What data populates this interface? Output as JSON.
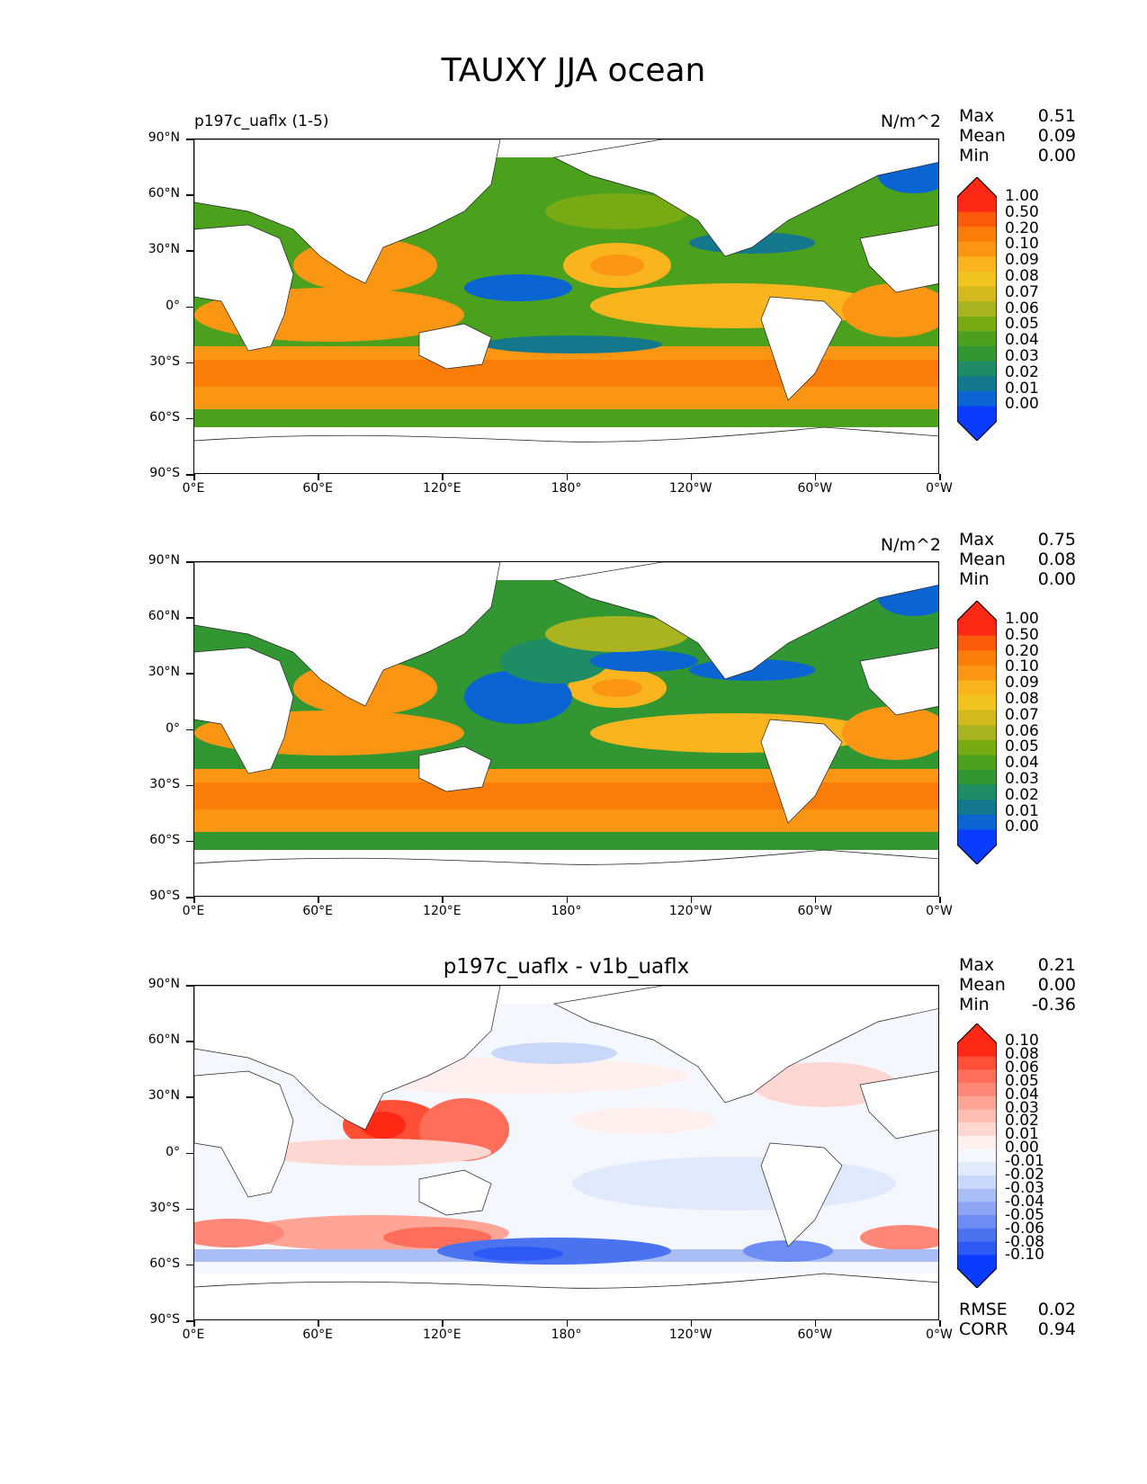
{
  "title": "TAUXY JJA ocean",
  "axes": {
    "yticks": [
      "90°N",
      "60°N",
      "30°N",
      "0°",
      "30°S",
      "60°S",
      "90°S"
    ],
    "xticks": [
      "0°E",
      "60°E",
      "120°E",
      "180°",
      "120°W",
      "60°W",
      "0°W"
    ]
  },
  "panels": [
    {
      "label_left": "p197c_uaflx (1-5)",
      "title_center": "",
      "units": "N/m^2",
      "stats": [
        {
          "label": "Max",
          "value": "0.51"
        },
        {
          "label": "Mean",
          "value": "0.09"
        },
        {
          "label": "Min",
          "value": "0.00"
        }
      ],
      "colorbar_labels": [
        "1.00",
        "0.50",
        "0.20",
        "0.10",
        "0.09",
        "0.08",
        "0.07",
        "0.06",
        "0.05",
        "0.04",
        "0.03",
        "0.02",
        "0.01",
        "0.00"
      ],
      "footer_stats": []
    },
    {
      "label_left": "",
      "title_center": "",
      "units": "N/m^2",
      "stats": [
        {
          "label": "Max",
          "value": "0.75"
        },
        {
          "label": "Mean",
          "value": "0.08"
        },
        {
          "label": "Min",
          "value": "0.00"
        }
      ],
      "colorbar_labels": [
        "1.00",
        "0.50",
        "0.20",
        "0.10",
        "0.09",
        "0.08",
        "0.07",
        "0.06",
        "0.05",
        "0.04",
        "0.03",
        "0.02",
        "0.01",
        "0.00"
      ],
      "footer_stats": []
    },
    {
      "label_left": "",
      "title_center": "p197c_uaflx - v1b_uaflx",
      "units": "",
      "stats": [
        {
          "label": "Max",
          "value": "0.21"
        },
        {
          "label": "Mean",
          "value": "0.00"
        },
        {
          "label": "Min",
          "value": "-0.36"
        }
      ],
      "colorbar_labels": [
        "0.10",
        "0.08",
        "0.06",
        "0.05",
        "0.04",
        "0.03",
        "0.02",
        "0.01",
        "0.00",
        "-0.01",
        "-0.02",
        "-0.03",
        "-0.04",
        "-0.05",
        "-0.06",
        "-0.08",
        "-0.10"
      ],
      "footer_stats": [
        {
          "label": "RMSE",
          "value": "0.02"
        },
        {
          "label": "CORR",
          "value": "0.94"
        }
      ]
    }
  ],
  "colors": {
    "seq": [
      "#0a3cff",
      "#0a64d2",
      "#14788c",
      "#1e8c64",
      "#329632",
      "#4ba01e",
      "#78aa14",
      "#aab41e",
      "#d2b91e",
      "#f0c31e",
      "#fab41e",
      "#fa9614",
      "#fa7d0a",
      "#fa5a0a",
      "#ff2814"
    ],
    "div": [
      "#0a3cff",
      "#2d5af5",
      "#4b73f0",
      "#6e8cf5",
      "#8ca5f5",
      "#aabef5",
      "#c8d7fa",
      "#e1eafc",
      "#f5f7ff",
      "#fff0ee",
      "#ffd7d2",
      "#ffbeb4",
      "#ffa596",
      "#ff8778",
      "#ff6e5a",
      "#ff5037",
      "#ff2814"
    ]
  }
}
